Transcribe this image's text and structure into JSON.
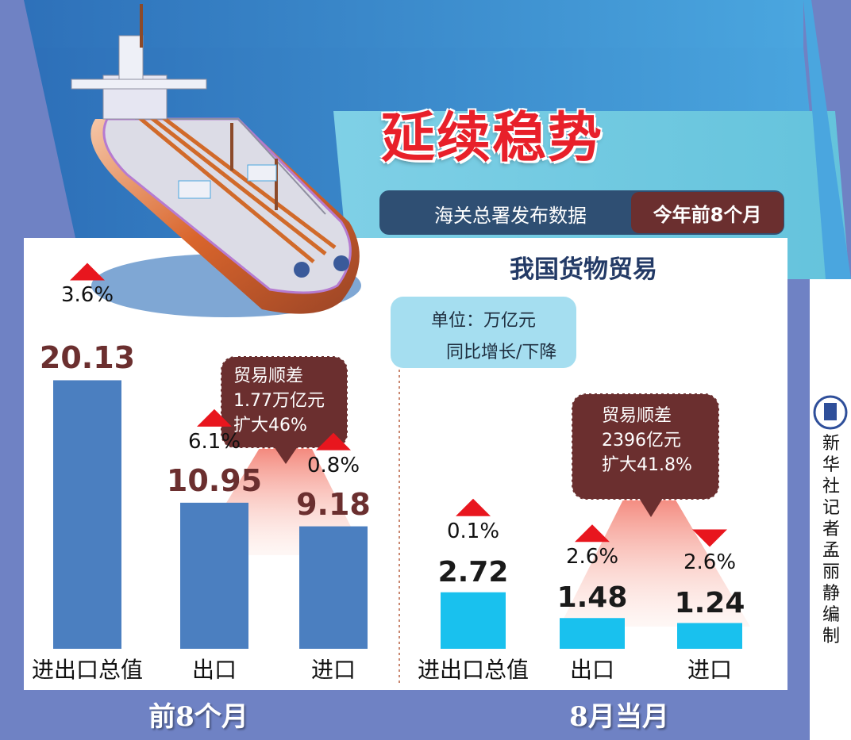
{
  "title": "延续稳势",
  "source_label": "海关总署发布数据",
  "period_label": "今年前8个月",
  "subtitle": "我国货物贸易",
  "unit_label": "单位：万亿元",
  "legend_label": "同比增长/下降",
  "credit": "新华社记者 孟丽静编制",
  "colors": {
    "left_bars": "#4b7fc0",
    "right_bars": "#19c1ee",
    "up": "#e8161e",
    "down": "#e8161e",
    "callout": "#6b2f2f",
    "value_left": "#6b2f2f",
    "value_right": "#1a1a1a"
  },
  "chart_data": [
    {
      "type": "bar",
      "title": "前8个月",
      "categories": [
        "进出口总值",
        "出口",
        "进口"
      ],
      "values": [
        20.13,
        10.95,
        9.18
      ],
      "value_labels": [
        "20.13",
        "10.95",
        "9.18"
      ],
      "change_labels": [
        "3.6%",
        "6.1%",
        "0.8%"
      ],
      "change_direction": [
        "up",
        "up",
        "up"
      ],
      "callout": {
        "line1": "贸易顺差",
        "line2": "1.77万亿元",
        "line3": "扩大46%"
      },
      "ylim": [
        0,
        22
      ]
    },
    {
      "type": "bar",
      "title": "8月当月",
      "categories": [
        "进出口总值",
        "出口",
        "进口"
      ],
      "values": [
        2.72,
        1.48,
        1.24
      ],
      "value_labels": [
        "2.72",
        "1.48",
        "1.24"
      ],
      "change_labels": [
        "0.1%",
        "2.6%",
        "2.6%"
      ],
      "change_direction": [
        "up",
        "up",
        "down"
      ],
      "callout": {
        "line1": "贸易顺差",
        "line2": "2396亿元",
        "line3": "扩大41.8%"
      },
      "ylim": [
        0,
        4.2
      ]
    }
  ]
}
